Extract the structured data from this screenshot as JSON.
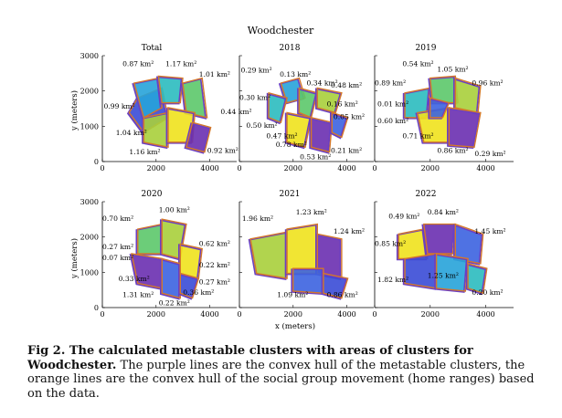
{
  "figure": {
    "title": "Woodchester",
    "xlabel": "x (meters)",
    "ylabel": "y (meters)",
    "panels": [
      {
        "title": "Total",
        "areas": [
          "0.87 km²",
          "1.17 km²",
          "1.01 km²",
          "0.99 km²",
          "0.44 km²",
          "1.04 km²",
          "1.16 km²",
          "0.92 km²"
        ]
      },
      {
        "title": "2018",
        "areas": [
          "0.29 km²",
          "0.13 km²",
          "0.34 km²",
          "0.48 km²",
          "0.30 km²",
          "0.16 km²",
          "0.05 km²",
          "0.50 km²",
          "0.47 km²",
          "0.78 km²",
          "0.53 km²",
          "0.21 km²"
        ]
      },
      {
        "title": "2019",
        "areas": [
          "0.54 km²",
          "1.05 km²",
          "0.89 km²",
          "0.96 km²",
          "0.01 km²",
          "0.60 km²",
          "0.71 km²",
          "0.86 km²",
          "0.29 km²"
        ]
      },
      {
        "title": "2020",
        "areas": [
          "0.70 km²",
          "1.00 km²",
          "0.27 km²",
          "0.07 km²",
          "0.62 km²",
          "0.22 km²",
          "0.33 km²",
          "0.27 km²",
          "1.31 km²",
          "0.36 km²",
          "0.22 km²"
        ]
      },
      {
        "title": "2021",
        "areas": [
          "1.96 km²",
          "1.23 km²",
          "1.24 km²",
          "1.09 km²",
          "0.86 km²"
        ]
      },
      {
        "title": "2022",
        "areas": [
          "0.49 km²",
          "0.84 km²",
          "1.45 km²",
          "0.85 km²",
          "1.82 km²",
          "1.25 km²",
          "0.20 km²"
        ]
      }
    ],
    "x_ticks": [
      "0",
      "2000",
      "4000"
    ],
    "y_ticks": [
      "0",
      "1000",
      "2000",
      "3000"
    ]
  },
  "caption": {
    "bold": "Fig 2. The calculated metastable clusters with areas of clusters for Woodchester.",
    "text": " The purple lines are the convex hull of the metastable clusters, the orange lines are the convex hull of the social group movement (home ranges) based on the data."
  },
  "colors": {
    "hull_purple": "#6a3fc4",
    "hull_orange": "#d4782a",
    "palette": [
      "#3a4bd6",
      "#27a3d9",
      "#2bbbbf",
      "#5cc86a",
      "#a9cf3b",
      "#f0e21d",
      "#6a2fb0",
      "#3c63e0"
    ]
  }
}
